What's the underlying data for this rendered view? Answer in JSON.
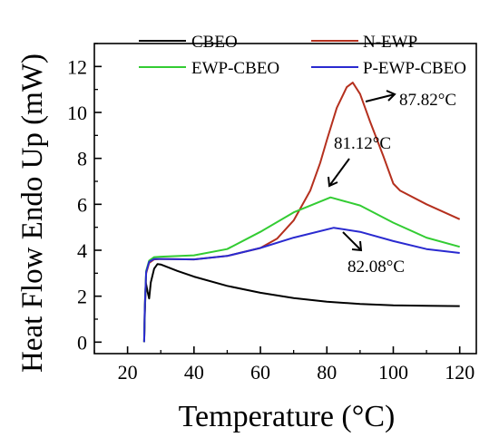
{
  "chart_data": {
    "type": "line",
    "title": "",
    "xlabel": "Temperature (°C)",
    "ylabel": "Heat Flow Endo Up (mW)",
    "xlim": [
      10,
      125
    ],
    "ylim": [
      -0.5,
      13
    ],
    "x_ticks": [
      20,
      40,
      60,
      80,
      100,
      120
    ],
    "y_ticks": [
      0,
      2,
      4,
      6,
      8,
      10,
      12
    ],
    "x_tick_labels": [
      "20",
      "40",
      "60",
      "80",
      "100",
      "120"
    ],
    "y_tick_labels": [
      "0",
      "2",
      "4",
      "6",
      "8",
      "10",
      "12"
    ],
    "grid": false,
    "legend_placement": "top",
    "series": [
      {
        "name": "CBEO",
        "color": "#000000",
        "points": [
          [
            25,
            0
          ],
          [
            25.2,
            1.2
          ],
          [
            25.5,
            2.6
          ],
          [
            26,
            2.2
          ],
          [
            26.5,
            1.9
          ],
          [
            27,
            2.6
          ],
          [
            28,
            3.2
          ],
          [
            29,
            3.4
          ],
          [
            30,
            3.38
          ],
          [
            35,
            3.1
          ],
          [
            40,
            2.85
          ],
          [
            50,
            2.45
          ],
          [
            60,
            2.15
          ],
          [
            70,
            1.92
          ],
          [
            80,
            1.76
          ],
          [
            90,
            1.66
          ],
          [
            100,
            1.6
          ],
          [
            110,
            1.58
          ],
          [
            120,
            1.57
          ]
        ]
      },
      {
        "name": "N-EWP",
        "color": "#b5301e",
        "points": [
          [
            25,
            0
          ],
          [
            25.2,
            1.5
          ],
          [
            25.6,
            3.0
          ],
          [
            26.5,
            3.45
          ],
          [
            28,
            3.6
          ],
          [
            30,
            3.62
          ],
          [
            40,
            3.6
          ],
          [
            50,
            3.75
          ],
          [
            60,
            4.1
          ],
          [
            65,
            4.5
          ],
          [
            70,
            5.3
          ],
          [
            75,
            6.6
          ],
          [
            78,
            7.8
          ],
          [
            80,
            8.8
          ],
          [
            83,
            10.2
          ],
          [
            86,
            11.1
          ],
          [
            87.8,
            11.3
          ],
          [
            90,
            10.8
          ],
          [
            93,
            9.6
          ],
          [
            97,
            8.1
          ],
          [
            100,
            6.9
          ],
          [
            102,
            6.6
          ],
          [
            110,
            6.0
          ],
          [
            120,
            5.35
          ]
        ]
      },
      {
        "name": "EWP-CBEO",
        "color": "#33cc33",
        "points": [
          [
            25,
            0
          ],
          [
            25.2,
            1.5
          ],
          [
            25.6,
            3.1
          ],
          [
            26.5,
            3.55
          ],
          [
            28,
            3.7
          ],
          [
            30,
            3.72
          ],
          [
            40,
            3.78
          ],
          [
            50,
            4.05
          ],
          [
            60,
            4.8
          ],
          [
            70,
            5.65
          ],
          [
            81.1,
            6.3
          ],
          [
            90,
            5.95
          ],
          [
            100,
            5.2
          ],
          [
            110,
            4.55
          ],
          [
            120,
            4.15
          ]
        ]
      },
      {
        "name": "P-EWP-CBEO",
        "color": "#2a2ad0",
        "points": [
          [
            25,
            0
          ],
          [
            25.2,
            1.5
          ],
          [
            25.6,
            3.05
          ],
          [
            26.5,
            3.5
          ],
          [
            28,
            3.62
          ],
          [
            30,
            3.62
          ],
          [
            40,
            3.6
          ],
          [
            50,
            3.75
          ],
          [
            60,
            4.1
          ],
          [
            70,
            4.55
          ],
          [
            82.1,
            4.98
          ],
          [
            90,
            4.8
          ],
          [
            100,
            4.4
          ],
          [
            110,
            4.05
          ],
          [
            120,
            3.88
          ]
        ]
      }
    ],
    "annotations": [
      {
        "text": "87.82°C",
        "x": 87.82,
        "y": 11.3
      },
      {
        "text": "81.12°C",
        "x": 81.12,
        "y": 6.3
      },
      {
        "text": "82.08°C",
        "x": 82.08,
        "y": 4.98
      }
    ]
  }
}
